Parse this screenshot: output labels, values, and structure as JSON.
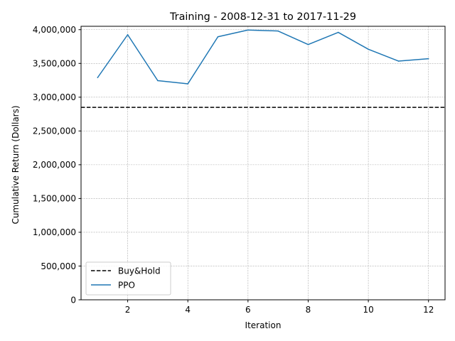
{
  "chart_data": {
    "type": "line",
    "title": "Training - 2008-12-31 to 2017-11-29",
    "xlabel": "Iteration",
    "ylabel": "Cumulative Return (Dollars)",
    "xlim": [
      0.45,
      12.55
    ],
    "ylim": [
      0,
      4050000
    ],
    "xticks": [
      2,
      4,
      6,
      8,
      10,
      12
    ],
    "xtick_labels": [
      "2",
      "4",
      "6",
      "8",
      "10",
      "12"
    ],
    "yticks": [
      0,
      500000,
      1000000,
      1500000,
      2000000,
      2500000,
      3000000,
      3500000,
      4000000
    ],
    "ytick_labels": [
      "0",
      "500,000",
      "1,000,000",
      "1,500,000",
      "2,000,000",
      "2,500,000",
      "3,000,000",
      "3,500,000",
      "4,000,000"
    ],
    "grid": true,
    "legend_position": "lower-left",
    "series": [
      {
        "name": "PPO",
        "color": "#1f77b4",
        "style": "solid",
        "x": [
          1,
          2,
          3,
          4,
          5,
          6,
          7,
          8,
          9,
          10,
          11,
          12
        ],
        "values": [
          3290000,
          3925000,
          3245000,
          3198000,
          3895000,
          3995000,
          3980000,
          3780000,
          3960000,
          3710000,
          3535000,
          3570000
        ]
      }
    ],
    "reference_lines": [
      {
        "name": "Buy&Hold",
        "color": "#000000",
        "style": "dashed",
        "y": 2850000
      }
    ],
    "legend": [
      "Buy&Hold",
      "PPO"
    ]
  }
}
